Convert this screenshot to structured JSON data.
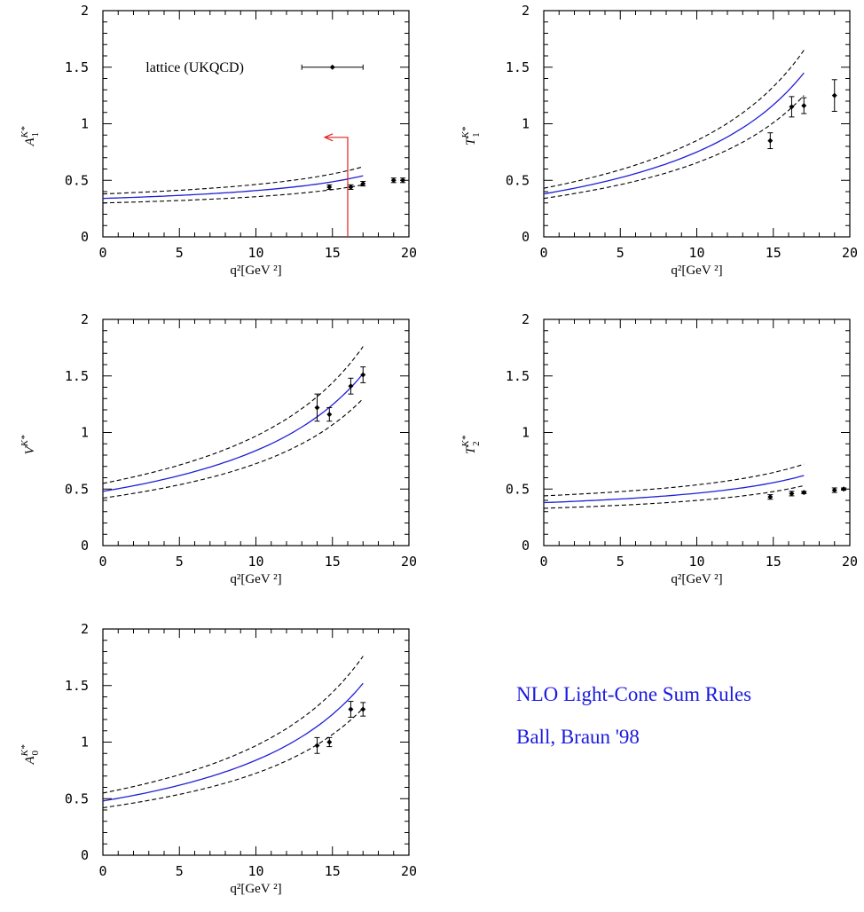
{
  "caption": {
    "line1": "NLO Light-Cone Sum Rules",
    "line2": "Ball, Braun '98"
  },
  "colors": {
    "theory": "#1f1fd6",
    "band": "#000000",
    "arrow": "#e02020",
    "points": "#000000"
  },
  "chart_data": [
    {
      "id": "A1",
      "type": "line",
      "ylabel": "A1^K*",
      "xlabel": "q²[GeV ²]",
      "xlim": [
        0,
        20
      ],
      "ylim": [
        0,
        2
      ],
      "xticks": [
        "0",
        "5",
        "10",
        "15",
        "20"
      ],
      "yticks": [
        "0",
        "0.5",
        "1",
        "1.5",
        "2"
      ],
      "central": {
        "x0": 0,
        "x1": 17,
        "y0": 0.34,
        "y1": 0.54
      },
      "upper": {
        "x0": 0,
        "x1": 17,
        "y0": 0.38,
        "y1": 0.62
      },
      "lower": {
        "x0": 0,
        "x1": 17,
        "y0": 0.3,
        "y1": 0.46
      },
      "points": [
        {
          "x": 14.8,
          "y": 0.44,
          "err": 0.02
        },
        {
          "x": 16.2,
          "y": 0.44,
          "err": 0.02
        },
        {
          "x": 17.0,
          "y": 0.47,
          "err": 0.02
        },
        {
          "x": 19.0,
          "y": 0.5,
          "err": 0.02
        },
        {
          "x": 19.6,
          "y": 0.5,
          "err": 0.02
        }
      ],
      "legend": {
        "label": "lattice (UKQCD)",
        "x": 15,
        "y": 1.5,
        "xerr": 2
      },
      "arrow": {
        "x": 16,
        "y_from": 0,
        "y_to": 0.88,
        "x_to": 14.5
      }
    },
    {
      "id": "T1",
      "type": "line",
      "ylabel": "T1^K*",
      "xlabel": "q²[GeV ²]",
      "xlim": [
        0,
        20
      ],
      "ylim": [
        0,
        2
      ],
      "xticks": [
        "0",
        "5",
        "10",
        "15",
        "20"
      ],
      "yticks": [
        "0",
        "0.5",
        "1",
        "1.5",
        "2"
      ],
      "central": {
        "x0": 0,
        "x1": 17,
        "y0": 0.38,
        "y1": 1.45
      },
      "upper": {
        "x0": 0,
        "x1": 17,
        "y0": 0.43,
        "y1": 1.65
      },
      "lower": {
        "x0": 0,
        "x1": 17,
        "y0": 0.34,
        "y1": 1.25
      },
      "points": [
        {
          "x": 14.8,
          "y": 0.85,
          "err": 0.07
        },
        {
          "x": 16.2,
          "y": 1.15,
          "err": 0.09
        },
        {
          "x": 17.0,
          "y": 1.16,
          "err": 0.07
        },
        {
          "x": 19.0,
          "y": 1.25,
          "err": 0.14
        }
      ]
    },
    {
      "id": "V",
      "type": "line",
      "ylabel": "V^K*",
      "xlabel": "q²[GeV ²]",
      "xlim": [
        0,
        20
      ],
      "ylim": [
        0,
        2
      ],
      "xticks": [
        "0",
        "5",
        "10",
        "15",
        "20"
      ],
      "yticks": [
        "0",
        "0.5",
        "1",
        "1.5",
        "2"
      ],
      "central": {
        "x0": 0,
        "x1": 17,
        "y0": 0.48,
        "y1": 1.52
      },
      "upper": {
        "x0": 0,
        "x1": 17,
        "y0": 0.55,
        "y1": 1.76
      },
      "lower": {
        "x0": 0,
        "x1": 17,
        "y0": 0.42,
        "y1": 1.3
      },
      "points": [
        {
          "x": 14.0,
          "y": 1.22,
          "err": 0.12
        },
        {
          "x": 14.8,
          "y": 1.16,
          "err": 0.06
        },
        {
          "x": 16.2,
          "y": 1.41,
          "err": 0.07
        },
        {
          "x": 17.0,
          "y": 1.51,
          "err": 0.07
        }
      ]
    },
    {
      "id": "T2",
      "type": "line",
      "ylabel": "T2^K*",
      "xlabel": "q²[GeV ²]",
      "xlim": [
        0,
        20
      ],
      "ylim": [
        0,
        2
      ],
      "xticks": [
        "0",
        "5",
        "10",
        "15",
        "20"
      ],
      "yticks": [
        "0",
        "0.5",
        "1",
        "1.5",
        "2"
      ],
      "central": {
        "x0": 0,
        "x1": 17,
        "y0": 0.38,
        "y1": 0.62
      },
      "upper": {
        "x0": 0,
        "x1": 17,
        "y0": 0.44,
        "y1": 0.72
      },
      "lower": {
        "x0": 0,
        "x1": 17,
        "y0": 0.33,
        "y1": 0.53
      },
      "points": [
        {
          "x": 14.8,
          "y": 0.43,
          "err": 0.02
        },
        {
          "x": 16.2,
          "y": 0.46,
          "err": 0.02
        },
        {
          "x": 17.0,
          "y": 0.47,
          "err": 0.01
        },
        {
          "x": 19.0,
          "y": 0.49,
          "err": 0.02
        },
        {
          "x": 19.6,
          "y": 0.5,
          "err": 0.01
        }
      ]
    },
    {
      "id": "A0",
      "type": "line",
      "ylabel": "A0^K*",
      "xlabel": "q²[GeV ²]",
      "xlim": [
        0,
        20
      ],
      "ylim": [
        0,
        2
      ],
      "xticks": [
        "0",
        "5",
        "10",
        "15",
        "20"
      ],
      "yticks": [
        "0",
        "0.5",
        "1",
        "1.5",
        "2"
      ],
      "central": {
        "x0": 0,
        "x1": 17,
        "y0": 0.48,
        "y1": 1.52
      },
      "upper": {
        "x0": 0,
        "x1": 17,
        "y0": 0.55,
        "y1": 1.76
      },
      "lower": {
        "x0": 0,
        "x1": 17,
        "y0": 0.42,
        "y1": 1.3
      },
      "points": [
        {
          "x": 14.0,
          "y": 0.97,
          "err": 0.07
        },
        {
          "x": 14.8,
          "y": 1.0,
          "err": 0.04
        },
        {
          "x": 16.2,
          "y": 1.29,
          "err": 0.07
        },
        {
          "x": 17.0,
          "y": 1.29,
          "err": 0.06
        }
      ]
    }
  ]
}
